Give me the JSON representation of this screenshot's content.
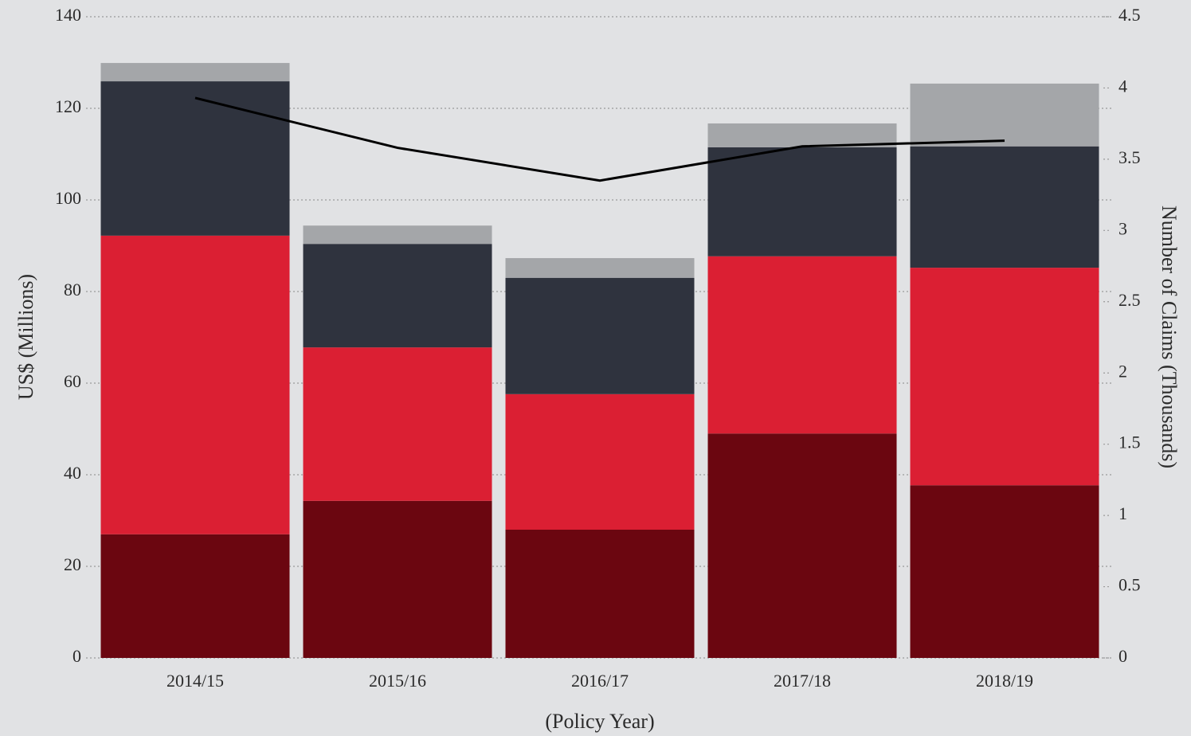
{
  "chart_data": {
    "type": "bar",
    "stacked": true,
    "x_label": "(Policy Year)",
    "y_label": "US$ (Millions)",
    "y2_label": "Number of Claims (Thousands)",
    "categories": [
      "2014/15",
      "2015/16",
      "2016/17",
      "2017/18",
      "2018/19"
    ],
    "series": [
      {
        "color": "#6b0610",
        "values": [
          27.0,
          34.3,
          28.0,
          49.0,
          37.7
        ]
      },
      {
        "color": "#db1f33",
        "values": [
          65.2,
          33.5,
          29.6,
          38.7,
          47.5
        ]
      },
      {
        "color": "#2f333e",
        "values": [
          33.7,
          22.6,
          25.4,
          23.8,
          26.5
        ]
      },
      {
        "color": "#a4a6a9",
        "values": [
          4.0,
          4.0,
          4.3,
          5.2,
          13.7
        ]
      },
      {
        "type": "line",
        "axis": "y2",
        "color": "#000000",
        "values": [
          3.93,
          3.58,
          3.35,
          3.59,
          3.63
        ]
      }
    ],
    "ylim": [
      0,
      140
    ],
    "yticks": [
      0,
      20,
      40,
      60,
      80,
      100,
      120,
      140
    ],
    "y2lim": [
      0,
      4.5
    ],
    "y2ticks": [
      0,
      0.5,
      1,
      1.5,
      2,
      2.5,
      3,
      3.5,
      4,
      4.5
    ],
    "grid": true
  }
}
